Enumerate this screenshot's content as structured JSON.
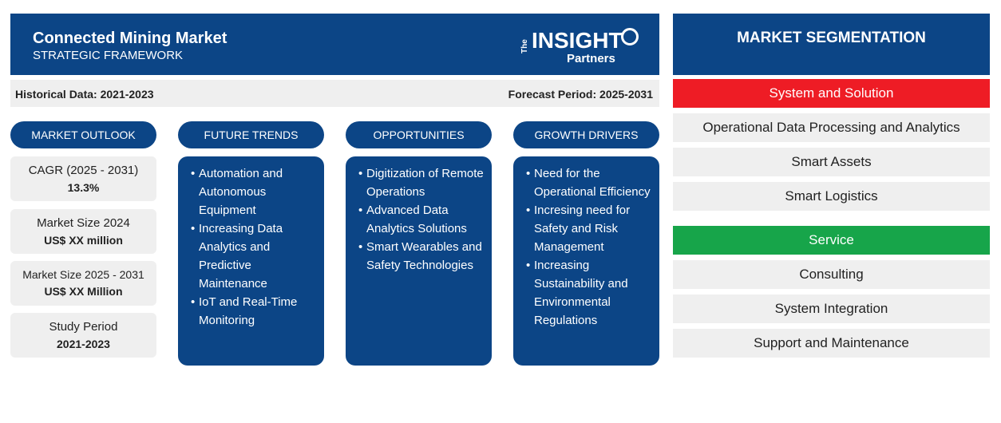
{
  "header": {
    "title": "Connected Mining Market",
    "subtitle": "STRATEGIC FRAMEWORK",
    "logo": {
      "the": "The",
      "insight": "INSIGHT",
      "partners": "Partners"
    }
  },
  "period": {
    "historical": "Historical Data: 2021-2023",
    "forecast": "Forecast Period: 2025-2031"
  },
  "columns": {
    "market_outlook": "MARKET OUTLOOK",
    "future_trends": "FUTURE TRENDS",
    "opportunities": "OPPORTUNITIES",
    "growth_drivers": "GROWTH DRIVERS"
  },
  "outlook": [
    {
      "label": "CAGR (2025 - 2031)",
      "value": "13.3%"
    },
    {
      "label": "Market Size 2024",
      "value": "US$ XX million"
    },
    {
      "label": "Market Size 2025 - 2031",
      "value": "US$ XX Million"
    },
    {
      "label": "Study Period",
      "value": "2021-2023"
    }
  ],
  "future_trends": [
    "Automation and Autonomous Equipment",
    "Increasing Data Analytics and Predictive Maintenance",
    "IoT and Real-Time Monitoring"
  ],
  "opportunities": [
    "Digitization of Remote Operations",
    "Advanced Data Analytics Solutions",
    "Smart Wearables and Safety Technologies"
  ],
  "growth_drivers": [
    "Need for the Operational Efficiency",
    "Incresing need for Safety and Risk Management",
    "Increasing Sustainability and Environmental Regulations"
  ],
  "segmentation": {
    "title": "MARKET SEGMENTATION",
    "categories": [
      {
        "name": "System and Solution",
        "color": "#ee1c25",
        "items": [
          "Operational Data Processing and Analytics",
          "Smart Assets",
          "Smart Logistics"
        ]
      },
      {
        "name": "Service",
        "color": "#17a54a",
        "items": [
          "Consulting",
          "System Integration",
          "Support and Maintenance"
        ]
      }
    ]
  },
  "colors": {
    "primary": "#0c4586",
    "panel_gray": "#efefef"
  }
}
